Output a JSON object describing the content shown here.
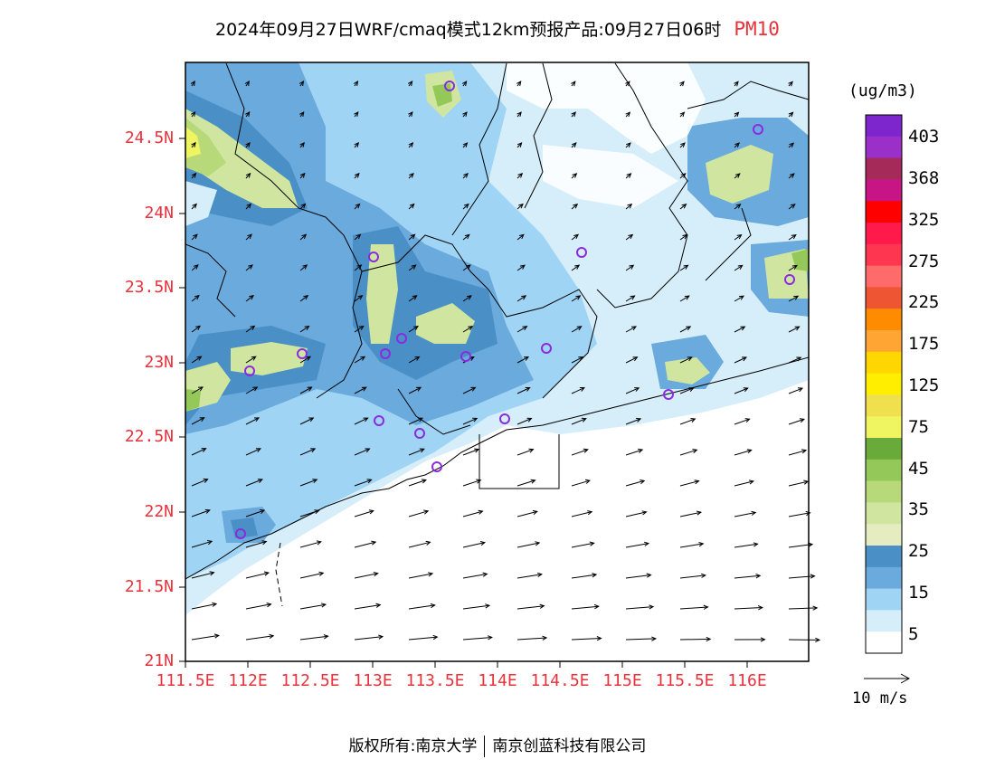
{
  "header": {
    "title": "2024年09月27日WRF/cmaq模式12km预报产品:09月27日06时",
    "pollutant": "PM10"
  },
  "map": {
    "lat_labels": [
      "24.5N",
      "24N",
      "23.5N",
      "23N",
      "22.5N",
      "22N",
      "21.5N",
      "21N"
    ],
    "lon_labels": [
      "111.5E",
      "112E",
      "112.5E",
      "113E",
      "113.5E",
      "114E",
      "114.5E",
      "115E",
      "115.5E",
      "116E"
    ],
    "station_marker_color": "#8a2be2",
    "wind_vector_color": "#000000"
  },
  "colorbar": {
    "units": "(ug/m3)",
    "labels": [
      "403",
      "368",
      "325",
      "275",
      "225",
      "175",
      "125",
      "75",
      "45",
      "35",
      "25",
      "15",
      "5"
    ],
    "colors": [
      "#7d26cd",
      "#9b30c8",
      "#a52a5a",
      "#c71585",
      "#ff0000",
      "#ff1a4b",
      "#ff3650",
      "#ff6a6a",
      "#ee5533",
      "#ff8c00",
      "#ffa533",
      "#ffd700",
      "#ffee00",
      "#f0e050",
      "#eef560",
      "#6aaa3a",
      "#94c95a",
      "#b8d97a",
      "#d0e6a0",
      "#e4ecc0",
      "#4a8fc5",
      "#6aaadc",
      "#a0d4f4",
      "#d6eefa",
      "#ffffff"
    ]
  },
  "wind_reference": {
    "label": "10 m/s"
  },
  "footer": {
    "copyright": "版权所有:南京大学",
    "company": "南京创蓝科技有限公司"
  }
}
